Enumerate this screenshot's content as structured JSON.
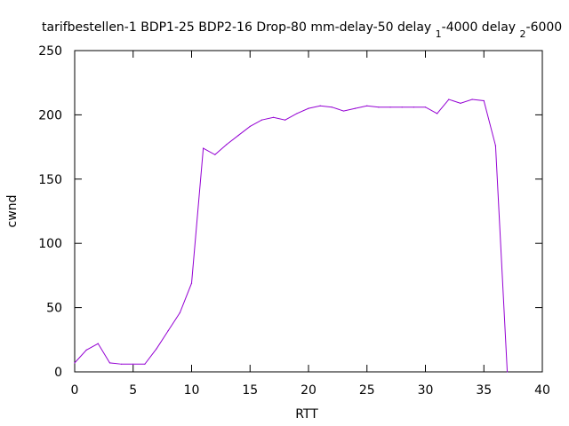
{
  "chart_data": {
    "type": "line",
    "title": "tarifbestellen-1 BDP1-25 BDP2-16 Drop-80 mm-delay-50 delay 1-4000 delay 2-6000",
    "title_parts": {
      "main": "tarifbestellen-1 BDP1-25 BDP2-16 Drop-80 mm-delay-50 delay ",
      "sub1": "1",
      "mid": "-4000 delay ",
      "sub2": "2",
      "end": "-6000"
    },
    "xlabel": "RTT",
    "ylabel": "cwnd",
    "xlim": [
      0,
      40
    ],
    "ylim": [
      0,
      250
    ],
    "xticks": [
      "0",
      "5",
      "10",
      "15",
      "20",
      "25",
      "30",
      "35",
      "40"
    ],
    "yticks": [
      "0",
      "50",
      "100",
      "150",
      "200",
      "250"
    ],
    "grid": false,
    "line_color": "#9400d3",
    "series": [
      {
        "x": [
          0,
          1,
          2,
          3,
          4,
          5,
          6,
          7,
          8,
          9,
          10,
          11,
          12,
          13,
          14,
          15,
          16,
          17,
          18,
          19,
          20,
          21,
          22,
          23,
          24,
          25,
          26,
          27,
          28,
          29,
          30,
          31,
          32,
          33,
          34,
          35,
          36,
          37
        ],
        "values": [
          7,
          17,
          22,
          7,
          6,
          6,
          6,
          18,
          32,
          46,
          69,
          174,
          169,
          177,
          184,
          191,
          196,
          198,
          196,
          201,
          205,
          207,
          206,
          203,
          205,
          207,
          206,
          206,
          206,
          206,
          206,
          201,
          212,
          209,
          212,
          211,
          176,
          0
        ]
      }
    ]
  }
}
